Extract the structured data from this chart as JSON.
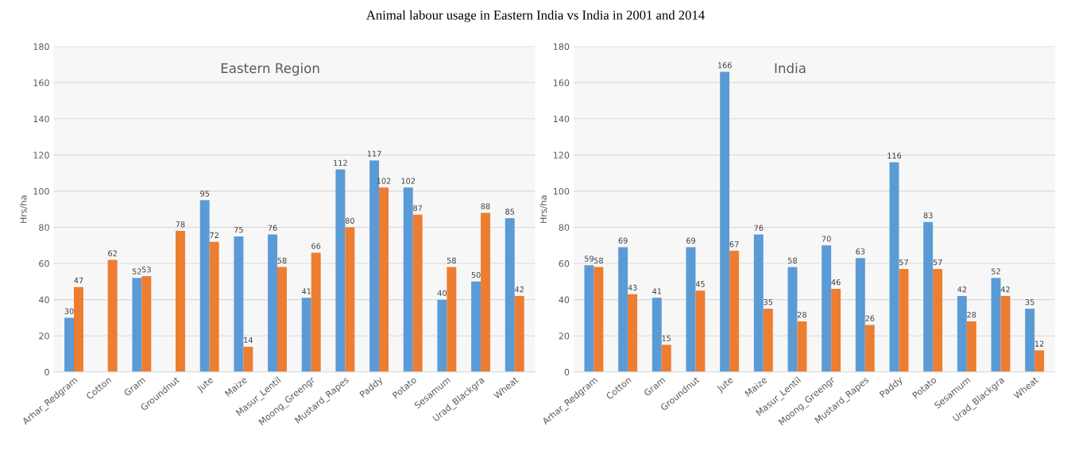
{
  "chart_data": [
    {
      "type": "bar",
      "title": "Eastern Region",
      "ylabel": "Hrs/ha",
      "annotations": [
        "Animal labour usage in Eastern India vs India in 2001 and 2014"
      ],
      "categories": [
        "Arhar_Redgram",
        "Cotton",
        "Gram",
        "Groundnut",
        "Jute",
        "Maize",
        "Masur_Lentil",
        "Moong_Greengr",
        "Mustard_Rapes",
        "Paddy",
        "Potato",
        "Sesamum",
        "Urad_Blackgra",
        "Wheat"
      ],
      "series": [
        {
          "color": "#5b9bd5",
          "values": [
            30,
            null,
            52,
            null,
            95,
            75,
            76,
            41,
            112,
            117,
            102,
            40,
            50,
            85
          ]
        },
        {
          "color": "#ed7d31",
          "values": [
            47,
            62,
            53,
            78,
            72,
            14,
            58,
            66,
            80,
            102,
            87,
            58,
            88,
            42
          ]
        }
      ],
      "ylim": [
        0,
        180
      ],
      "yticks": [
        0,
        20,
        40,
        60,
        80,
        100,
        120,
        140,
        160,
        180
      ],
      "grid": "y",
      "data_labels": true
    },
    {
      "type": "bar",
      "title": "India",
      "ylabel": "Hrs/ha",
      "categories": [
        "Arhar_Redgram",
        "Cotton",
        "Gram",
        "Groundnut",
        "Jute",
        "Maize",
        "Masur_Lentil",
        "Moong_Greengr",
        "Mustard_Rapes",
        "Paddy",
        "Potato",
        "Sesamum",
        "Urad_Blackgra",
        "Wheat"
      ],
      "series": [
        {
          "color": "#5b9bd5",
          "values": [
            59,
            69,
            41,
            69,
            166,
            76,
            58,
            70,
            63,
            116,
            83,
            42,
            52,
            35
          ]
        },
        {
          "color": "#ed7d31",
          "values": [
            58,
            43,
            15,
            45,
            67,
            35,
            28,
            46,
            26,
            57,
            57,
            28,
            42,
            12
          ]
        }
      ],
      "ylim": [
        0,
        180
      ],
      "yticks": [
        0,
        20,
        40,
        60,
        80,
        100,
        120,
        140,
        160,
        180
      ],
      "grid": "y",
      "data_labels": true
    }
  ]
}
